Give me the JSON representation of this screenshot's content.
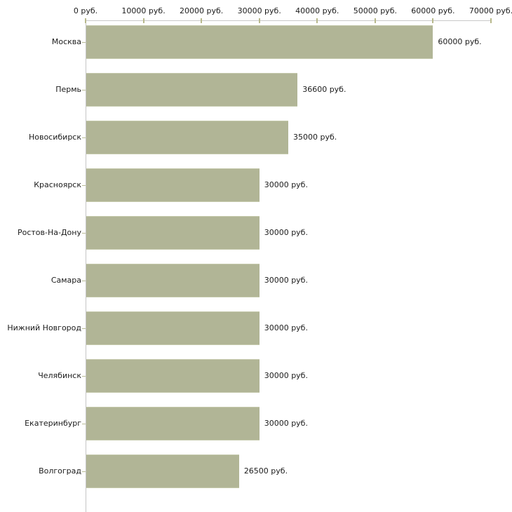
{
  "chart_data": {
    "type": "bar",
    "orientation": "horizontal",
    "title": "",
    "xlabel": "",
    "ylabel": "",
    "grid": false,
    "legend": "none",
    "categories": [
      "Москва",
      "Пермь",
      "Новосибирск",
      "Красноярск",
      "Ростов-На-Дону",
      "Самара",
      "Нижний Новгород",
      "Челябинск",
      "Екатеринбург",
      "Волгоград"
    ],
    "values": [
      60000,
      36600,
      35000,
      30000,
      30000,
      30000,
      30000,
      30000,
      30000,
      26500
    ],
    "value_labels": [
      "60000 руб.",
      "36600 руб.",
      "35000 руб.",
      "30000 руб.",
      "30000 руб.",
      "30000 руб.",
      "30000 руб.",
      "30000 руб.",
      "30000 руб.",
      "26500 руб."
    ],
    "x_ticks": [
      0,
      10000,
      20000,
      30000,
      40000,
      50000,
      60000,
      70000
    ],
    "x_tick_labels": [
      "0 руб.",
      "10000 руб.",
      "20000 руб.",
      "30000 руб.",
      "40000 руб.",
      "50000 руб.",
      "60000 руб.",
      "70000 руб."
    ],
    "xlim": [
      0,
      70000
    ],
    "colors": {
      "bar_fill": "#b1b596",
      "bar_edge": "#c5c9ac",
      "axis_line": "#c9c9c9",
      "axis_tick": "#b8b98c",
      "category_tick": "#b8bb96",
      "text": "#1b1b1b",
      "background": "#ffffff"
    }
  }
}
